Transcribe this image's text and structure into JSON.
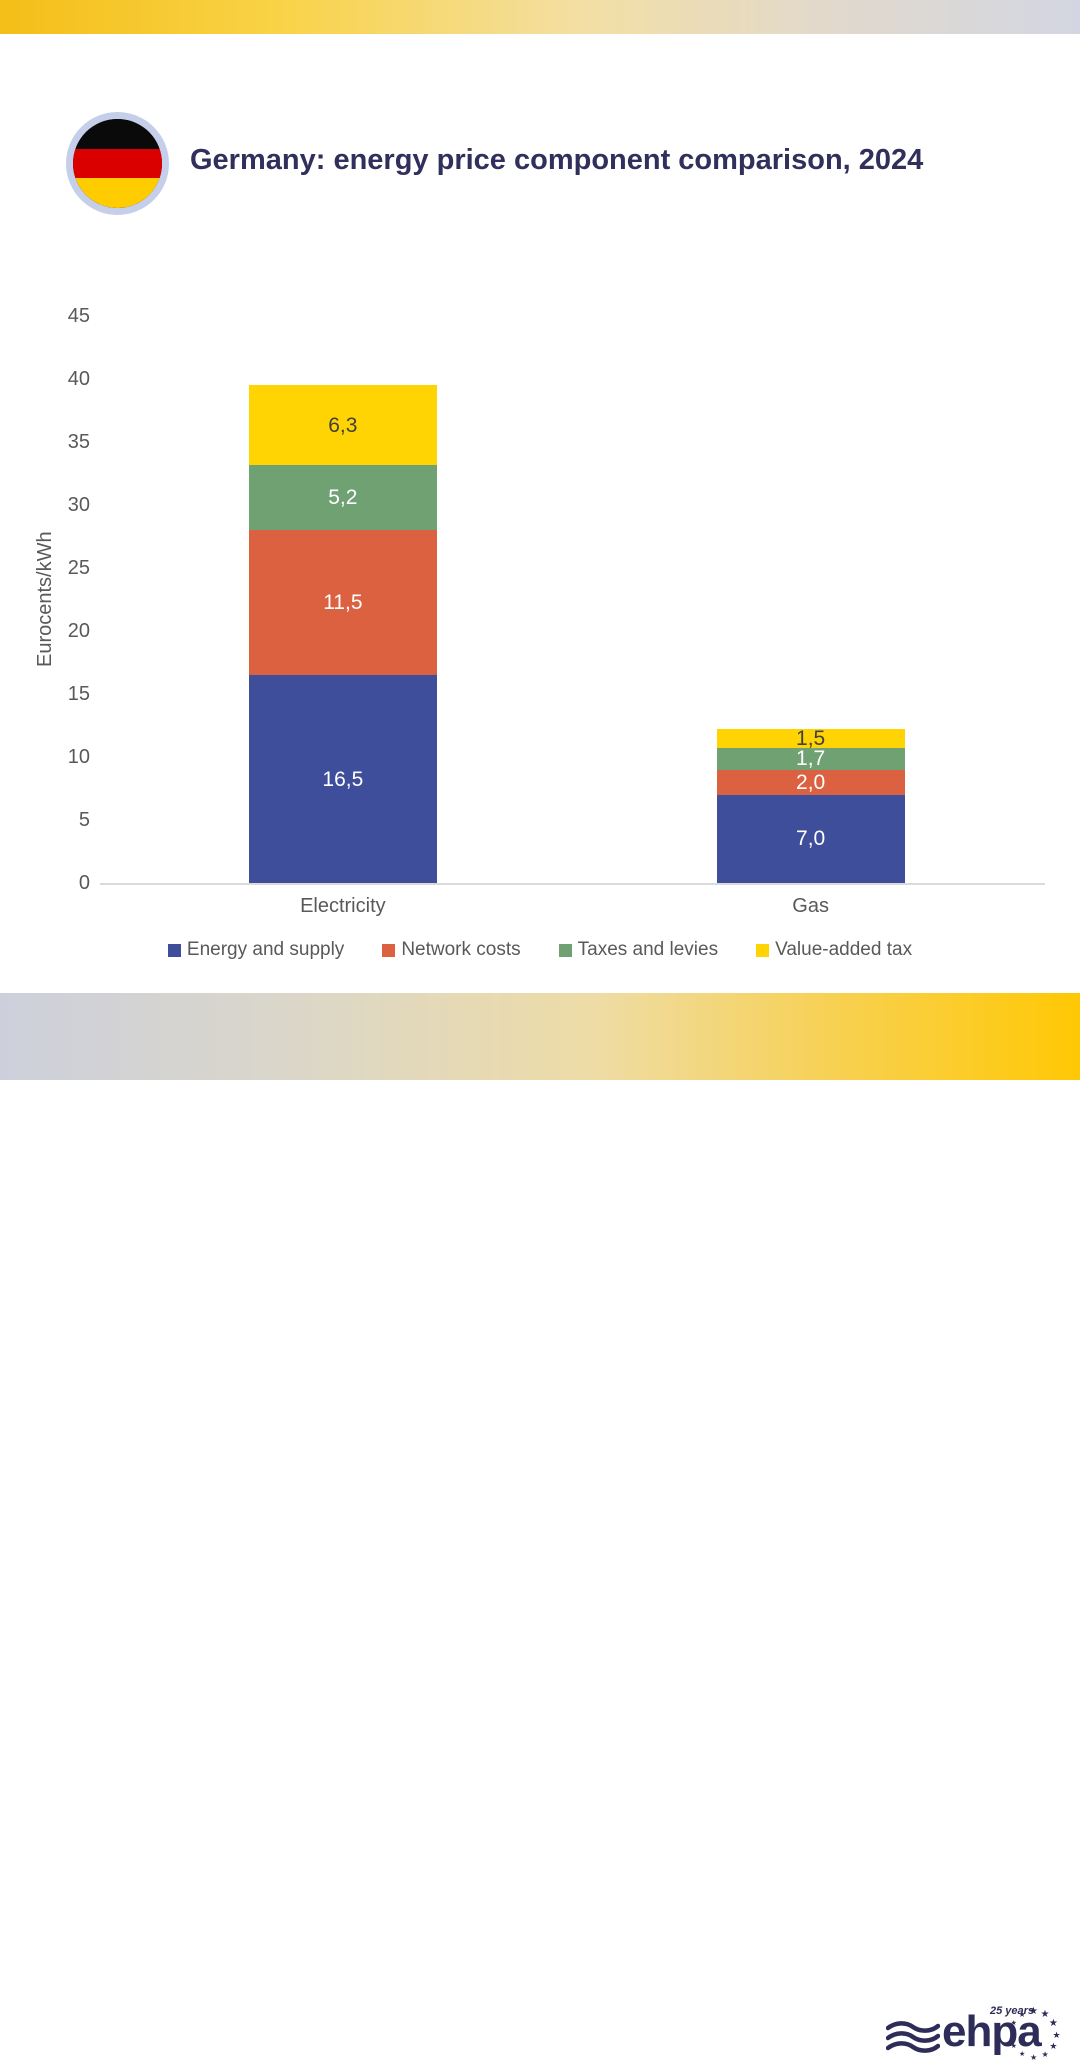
{
  "header": {
    "title": "Germany: energy price component comparison, 2024",
    "flag": "Germany"
  },
  "chart_data": {
    "type": "bar",
    "stacked": true,
    "title": "Germany: energy price component comparison, 2024",
    "categories": [
      "Electricity",
      "Gas"
    ],
    "series": [
      {
        "name": "Energy and supply",
        "color": "#3F4E9B",
        "values": [
          16.5,
          7.0
        ],
        "value_labels": [
          "16,5",
          "7,0"
        ],
        "label_color": "#FFFFFF"
      },
      {
        "name": "Network costs",
        "color": "#DC6140",
        "values": [
          11.5,
          2.0
        ],
        "value_labels": [
          "11,5",
          "2,0"
        ],
        "label_color": "#FFFFFF"
      },
      {
        "name": "Taxes and levies",
        "color": "#6FA173",
        "values": [
          5.2,
          1.7
        ],
        "value_labels": [
          "5,2",
          "1,7"
        ],
        "label_color": "#FFFFFF"
      },
      {
        "name": "Value-added tax",
        "color": "#FFD402",
        "values": [
          6.3,
          1.5
        ],
        "value_labels": [
          "6,3",
          "1,5"
        ],
        "label_color": "#404040"
      }
    ],
    "totals": [
      39.5,
      12.2
    ],
    "xlabel": "",
    "ylabel": "Eurocents/kWh",
    "ylim": [
      0,
      45
    ],
    "ytick_step": 5,
    "grid": false,
    "legend_position": "bottom"
  },
  "footer": {
    "logo_text": "ehpa",
    "years_label": "25 years"
  },
  "colors": {
    "title_text": "#312F5C",
    "axis_text": "#595959",
    "baseline": "#DADADA",
    "logo_navy": "#2E2C58",
    "flag_ring": "#C6CFE9",
    "flag_black": "#0A0A0A",
    "flag_red": "#DB0000",
    "flag_gold": "#FFCC00",
    "brand_gold": "#FFC804",
    "brand_lavender": "#D3D6E2"
  }
}
